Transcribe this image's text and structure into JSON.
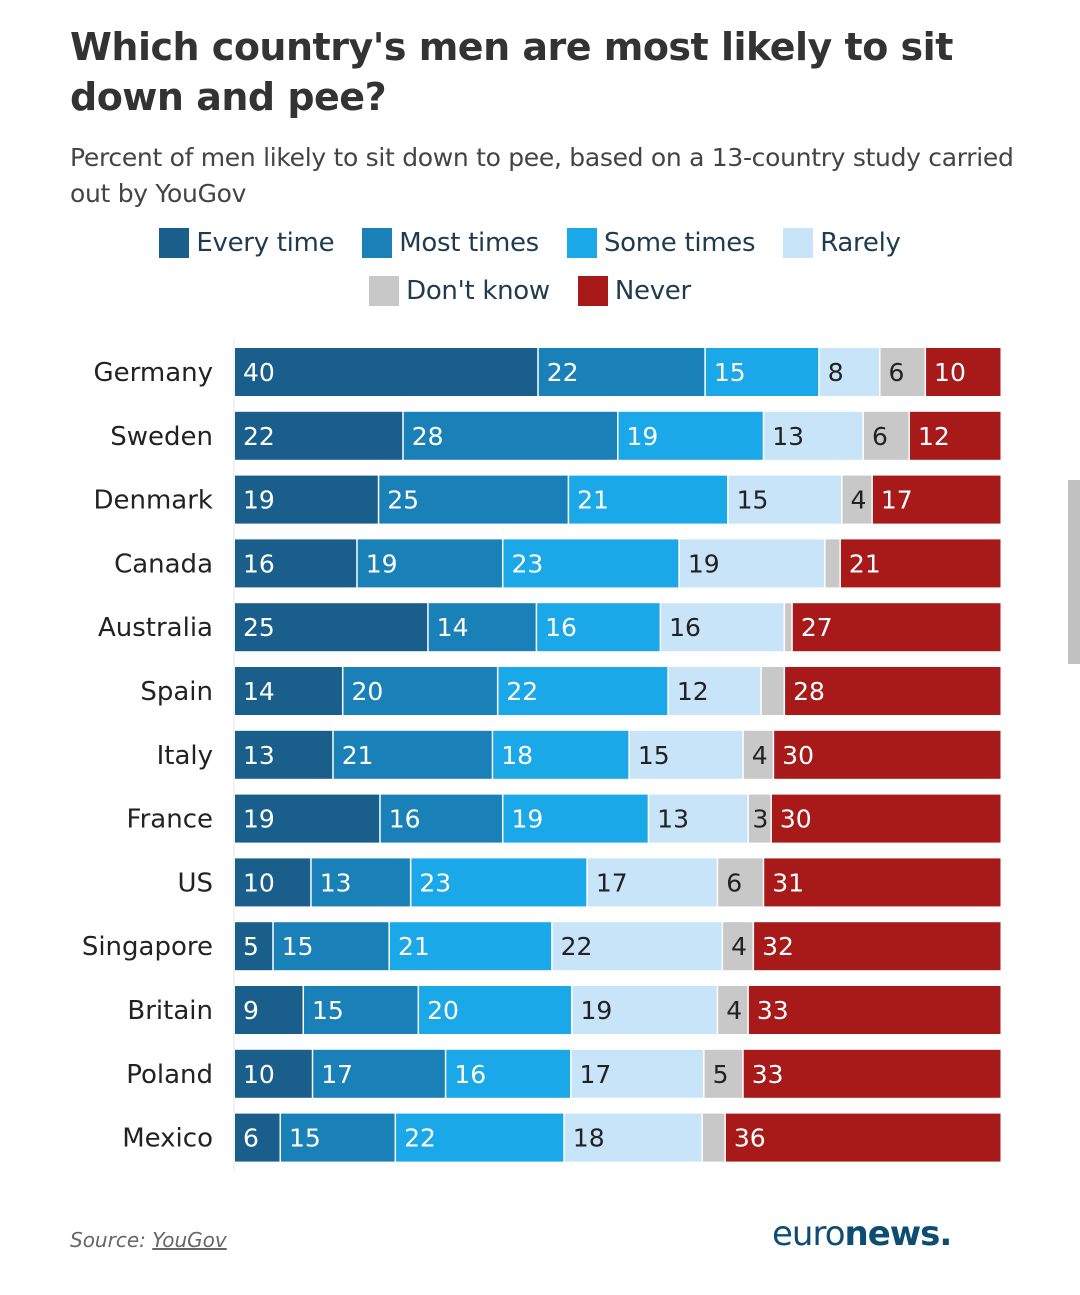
{
  "title": "Which country's men are most likely to sit down and pee?",
  "subtitle": "Percent of men likely to sit down to pee, based on a 13-country study carried out by YouGov",
  "source_prefix": "Source: ",
  "source_link": "YouGov",
  "logo": {
    "light": "euro",
    "bold": "news."
  },
  "chart_data": {
    "type": "bar",
    "orientation": "horizontal",
    "stacked": true,
    "title": "Which country's men are most likely to sit down and pee?",
    "subtitle": "Percent of men likely to sit down to pee, based on a 13-country study carried out by YouGov",
    "xlabel": "",
    "ylabel": "",
    "legend_position": "top-center",
    "categories": [
      "Germany",
      "Sweden",
      "Denmark",
      "Canada",
      "Australia",
      "Spain",
      "Italy",
      "France",
      "US",
      "Singapore",
      "Britain",
      "Poland",
      "Mexico"
    ],
    "series": [
      {
        "name": "Every time",
        "color": "#1a5f8c",
        "label_color": "#ffffff",
        "values": [
          40,
          22,
          19,
          16,
          25,
          14,
          13,
          19,
          10,
          5,
          9,
          10,
          6
        ],
        "show_labels": [
          true,
          true,
          true,
          true,
          true,
          true,
          true,
          true,
          true,
          true,
          true,
          true,
          true
        ]
      },
      {
        "name": "Most times",
        "color": "#1a80b8",
        "label_color": "#ffffff",
        "values": [
          22,
          28,
          25,
          19,
          14,
          20,
          21,
          16,
          13,
          15,
          15,
          17,
          15
        ],
        "show_labels": [
          true,
          true,
          true,
          true,
          true,
          true,
          true,
          true,
          true,
          true,
          true,
          true,
          true
        ]
      },
      {
        "name": "Some times",
        "color": "#1ba8e8",
        "label_color": "#ffffff",
        "values": [
          15,
          19,
          21,
          23,
          16,
          22,
          18,
          19,
          23,
          21,
          20,
          16,
          22
        ],
        "show_labels": [
          true,
          true,
          true,
          true,
          true,
          true,
          true,
          true,
          true,
          true,
          true,
          true,
          true
        ]
      },
      {
        "name": "Rarely",
        "color": "#c8e4f8",
        "label_color": "#222222",
        "values": [
          8,
          13,
          15,
          19,
          16,
          12,
          15,
          13,
          17,
          22,
          19,
          17,
          18
        ],
        "show_labels": [
          true,
          true,
          true,
          true,
          true,
          true,
          true,
          true,
          true,
          true,
          true,
          true,
          true
        ]
      },
      {
        "name": "Don't know",
        "color": "#c8c8c8",
        "label_color": "#222222",
        "values": [
          6,
          6,
          4,
          2,
          1,
          3,
          4,
          3,
          6,
          4,
          4,
          5,
          3
        ],
        "show_labels": [
          true,
          true,
          true,
          false,
          false,
          false,
          true,
          true,
          true,
          true,
          true,
          true,
          false
        ]
      },
      {
        "name": "Never",
        "color": "#a81a1a",
        "label_color": "#ffffff",
        "values": [
          10,
          12,
          17,
          21,
          27,
          28,
          30,
          30,
          31,
          32,
          33,
          33,
          36
        ],
        "show_labels": [
          true,
          true,
          true,
          true,
          true,
          true,
          true,
          true,
          true,
          true,
          true,
          true,
          true
        ]
      }
    ]
  }
}
